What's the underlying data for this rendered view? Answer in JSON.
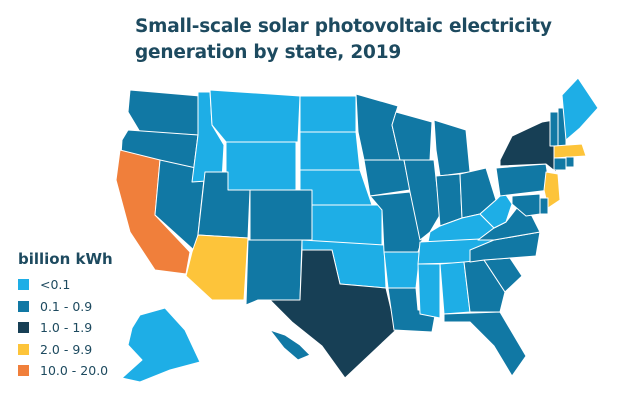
{
  "title": {
    "line1": "Small-scale solar photovoltaic electricity",
    "line2": "generation by state, 2019"
  },
  "legend": {
    "title": "billion kWh",
    "items": [
      {
        "label": "<0.1",
        "color": "#1eaee6"
      },
      {
        "label": "0.1 - 0.9",
        "color": "#1178a4"
      },
      {
        "label": "1.0 - 1.9",
        "color": "#173f55"
      },
      {
        "label": "2.0 - 9.9",
        "color": "#fdc43a"
      },
      {
        "label": "10.0 - 20.0",
        "color": "#f07f3b"
      }
    ]
  },
  "state_category": {
    "WA": 1,
    "OR": 1,
    "CA": 4,
    "NV": 1,
    "ID": 0,
    "MT": 0,
    "WY": 0,
    "UT": 1,
    "AZ": 3,
    "CO": 1,
    "NM": 1,
    "ND": 0,
    "SD": 0,
    "NE": 0,
    "KS": 0,
    "OK": 0,
    "TX": 2,
    "MN": 1,
    "IA": 1,
    "MO": 1,
    "AR": 0,
    "LA": 1,
    "WI": 1,
    "IL": 1,
    "MI": 1,
    "IN": 1,
    "OH": 1,
    "KY": 0,
    "TN": 0,
    "MS": 0,
    "AL": 0,
    "GA": 1,
    "FL": 1,
    "SC": 1,
    "NC": 1,
    "VA": 1,
    "WV": 0,
    "PA": 1,
    "NY": 2,
    "VT": 1,
    "NH": 1,
    "ME": 0,
    "MA": 3,
    "CT": 1,
    "RI": 1,
    "NJ": 3,
    "DE": 1,
    "MD": 1,
    "AK": 0,
    "HI": 1
  }
}
